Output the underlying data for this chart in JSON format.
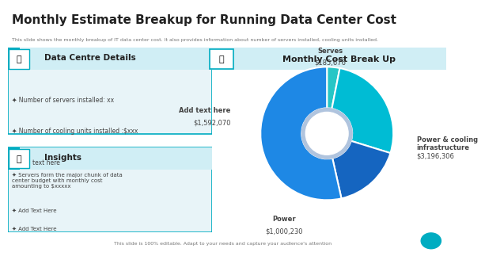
{
  "title": "Monthly Estimate Breakup for Running Data Center Cost",
  "subtitle": "This slide shows the monthly breakup of IT data center cost. It also provides information about number of servers installed, cooling units installed.",
  "footer": "This slide is 100% editable. Adapt to your needs and capture your audience's attention",
  "pie_title": "Monthly Cost Break Up",
  "pie_labels": [
    "Serves",
    "Add text here",
    "Power",
    "Power & cooling\ninfrastructure"
  ],
  "pie_values": [
    185676,
    1592070,
    1000230,
    3196306
  ],
  "pie_label_values": [
    "$185,676",
    "$1,592,070",
    "$1,000,230",
    "$3,196,306"
  ],
  "pie_colors": [
    "#26c6c6",
    "#00bcd4",
    "#1565c0",
    "#1e88e5"
  ],
  "donut_hole_color": "#b0c4de",
  "bg_color": "#ffffff",
  "left_box_bg": "#e8f4f8",
  "header_bg": "#d0eef5",
  "border_color": "#00acc1",
  "box1_title": "Data Centre Details",
  "box1_bullets": [
    "Number of servers installed: xx",
    "Number of cooling units installed :$xxx",
    "Add text here"
  ],
  "box2_title": "Insights",
  "box2_bullets": [
    "Servers form the major chunk of data\ncenter budget with monthly cost\namounting to $xxxxx",
    "Add Text Here",
    "Add Text Here"
  ],
  "title_color": "#212121",
  "subtitle_color": "#757575",
  "text_color": "#424242",
  "accent_color": "#00acc1"
}
